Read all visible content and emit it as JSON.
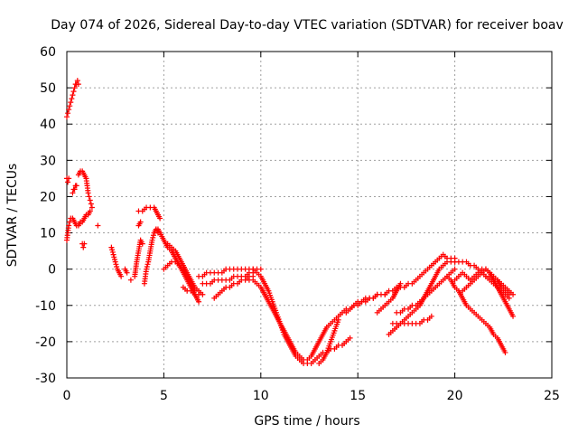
{
  "chart_data": {
    "type": "scatter",
    "title": "Day 074 of 2026, Sidereal Day-to-day VTEC variation (SDTVAR) for receiver boav",
    "xlabel": "GPS time / hours",
    "ylabel": "SDTVAR / TECUs",
    "xlim": [
      0,
      25
    ],
    "ylim": [
      -30,
      60
    ],
    "xticks": [
      "0",
      "5",
      "10",
      "15",
      "20",
      "25"
    ],
    "yticks": [
      "-30",
      "-20",
      "-10",
      "0",
      "10",
      "20",
      "30",
      "40",
      "50",
      "60"
    ],
    "grid": true,
    "marker": "+",
    "color": "#ff0000",
    "series": [
      {
        "name": "trace-1",
        "x": [
          0.0,
          0.05,
          0.1,
          0.15,
          0.2,
          0.25,
          0.3,
          0.35,
          0.4,
          0.45,
          0.5,
          0.55,
          0.6
        ],
        "y": [
          42,
          43,
          44,
          45,
          46,
          47,
          48,
          49,
          50,
          51,
          51,
          52,
          51
        ]
      },
      {
        "name": "trace-2",
        "x": [
          0.0,
          0.05,
          0.1,
          0.15,
          0.2,
          0.3,
          0.4,
          0.5,
          0.6,
          0.7,
          0.8,
          0.9,
          1.0,
          1.1,
          1.2
        ],
        "y": [
          8,
          10,
          12,
          13,
          14,
          14,
          13,
          12,
          12,
          13,
          13,
          14,
          15,
          15,
          16
        ]
      },
      {
        "name": "trace-3",
        "x": [
          0.0,
          0.05,
          0.1
        ],
        "y": [
          25,
          24,
          25
        ]
      },
      {
        "name": "trace-4",
        "x": [
          0.3,
          0.35,
          0.4,
          0.45,
          0.5
        ],
        "y": [
          21,
          22,
          22,
          23,
          23
        ]
      },
      {
        "name": "trace-5",
        "x": [
          0.6,
          0.7,
          0.8,
          0.9,
          1.0,
          1.05,
          1.1,
          1.15,
          1.2,
          1.25,
          1.3
        ],
        "y": [
          26,
          27,
          27,
          26,
          25,
          23,
          21,
          20,
          19,
          18,
          17
        ]
      },
      {
        "name": "trace-6",
        "x": [
          0.8,
          0.85,
          0.9
        ],
        "y": [
          7,
          6,
          7
        ]
      },
      {
        "name": "trace-7",
        "x": [
          1.6
        ],
        "y": [
          12
        ]
      },
      {
        "name": "trace-8",
        "x": [
          2.3,
          2.4,
          2.5,
          2.6,
          2.7,
          2.8
        ],
        "y": [
          6,
          4,
          2,
          0,
          -1,
          -2
        ]
      },
      {
        "name": "trace-9",
        "x": [
          3.0,
          3.1
        ],
        "y": [
          0,
          -1
        ]
      },
      {
        "name": "trace-10",
        "x": [
          3.3
        ],
        "y": [
          -3
        ]
      },
      {
        "name": "trace-11",
        "x": [
          3.5,
          3.6,
          3.7,
          3.8,
          3.9
        ],
        "y": [
          -2,
          2,
          5,
          8,
          7
        ]
      },
      {
        "name": "trace-12",
        "x": [
          3.7,
          3.8
        ],
        "y": [
          12,
          13
        ]
      },
      {
        "name": "trace-13",
        "x": [
          3.7,
          3.9,
          4.1,
          4.3,
          4.5,
          4.6,
          4.7,
          4.8
        ],
        "y": [
          16,
          16,
          17,
          17,
          17,
          16,
          15,
          14
        ]
      },
      {
        "name": "trace-14",
        "x": [
          4.0,
          4.05,
          4.1,
          4.2,
          4.3,
          4.4,
          4.5,
          4.6,
          4.7
        ],
        "y": [
          -4,
          -2,
          0,
          2,
          5,
          8,
          10,
          11,
          10
        ]
      },
      {
        "name": "trace-15",
        "x": [
          4.5,
          4.6,
          4.7,
          4.8,
          5.0,
          5.2,
          5.4,
          5.6,
          5.8,
          6.0,
          6.2,
          6.4,
          6.6,
          6.8
        ],
        "y": [
          10,
          11,
          11,
          10,
          8,
          6,
          5,
          3,
          1,
          -1,
          -3,
          -5,
          -7,
          -9
        ]
      },
      {
        "name": "trace-16",
        "x": [
          5.2,
          5.4,
          5.6,
          5.8,
          6.0,
          6.2,
          6.4,
          6.6,
          6.8,
          7.0
        ],
        "y": [
          7,
          6,
          5,
          3,
          1,
          -1,
          -3,
          -5,
          -6,
          -7
        ]
      },
      {
        "name": "trace-17",
        "x": [
          5.0,
          5.2,
          5.4,
          5.6,
          5.8,
          6.0,
          6.2,
          6.4,
          6.6
        ],
        "y": [
          0,
          1,
          2,
          2,
          1,
          0,
          -2,
          -4,
          -6
        ]
      },
      {
        "name": "trace-18",
        "x": [
          6.0,
          6.2,
          6.4,
          6.6,
          6.8
        ],
        "y": [
          -5,
          -6,
          -6,
          -7,
          -7
        ]
      },
      {
        "name": "trace-19",
        "x": [
          6.8,
          7.0,
          7.2,
          7.4,
          7.6,
          7.8,
          8.0,
          8.2,
          8.4,
          8.6,
          8.8,
          9.0,
          9.2,
          9.4,
          9.6,
          9.8,
          10.0
        ],
        "y": [
          -2,
          -2,
          -1,
          -1,
          -1,
          -1,
          -1,
          0,
          0,
          0,
          0,
          0,
          0,
          0,
          0,
          0,
          0
        ]
      },
      {
        "name": "trace-20",
        "x": [
          7.0,
          7.2,
          7.4,
          7.6,
          7.8,
          8.0,
          8.2,
          8.4,
          8.6,
          8.8,
          9.0,
          9.2,
          9.4,
          9.6
        ],
        "y": [
          -4,
          -4,
          -4,
          -3,
          -3,
          -3,
          -3,
          -3,
          -2,
          -2,
          -2,
          -2,
          -1,
          -1
        ]
      },
      {
        "name": "trace-21",
        "x": [
          7.6,
          7.8,
          8.0,
          8.2,
          8.4,
          8.6,
          8.8,
          9.0,
          9.2,
          9.4,
          9.6
        ],
        "y": [
          -8,
          -7,
          -6,
          -5,
          -5,
          -4,
          -4,
          -3,
          -3,
          -2,
          -2
        ]
      },
      {
        "name": "trace-22",
        "x": [
          9.6,
          9.8,
          10.0,
          10.2,
          10.4,
          10.6,
          10.8,
          11.0,
          11.2,
          11.4,
          11.6,
          11.8,
          12.0,
          12.2,
          12.4,
          12.6,
          12.8,
          13.0,
          13.2,
          13.4,
          13.6,
          13.8,
          14.0,
          14.2,
          14.4,
          14.6
        ],
        "y": [
          0,
          -1,
          -2,
          -4,
          -6,
          -9,
          -12,
          -15,
          -18,
          -20,
          -22,
          -24,
          -25,
          -26,
          -26,
          -26,
          -25,
          -24,
          -23,
          -23,
          -22,
          -22,
          -21,
          -21,
          -20,
          -19
        ]
      },
      {
        "name": "trace-23",
        "x": [
          9.4,
          9.6,
          9.8,
          10.0,
          10.2,
          10.4,
          10.6,
          10.8,
          11.0,
          11.2,
          11.4,
          11.6,
          11.8,
          12.0,
          12.2
        ],
        "y": [
          -3,
          -3,
          -4,
          -5,
          -7,
          -9,
          -11,
          -13,
          -15,
          -17,
          -19,
          -21,
          -23,
          -24,
          -25
        ]
      },
      {
        "name": "trace-24",
        "x": [
          12.4,
          12.6,
          12.8,
          13.0,
          13.2,
          13.4,
          13.6,
          13.8,
          14.0,
          14.2,
          14.4,
          14.6,
          14.8,
          15.0,
          15.2,
          15.4,
          15.6,
          15.8,
          16.0
        ],
        "y": [
          -25,
          -24,
          -22,
          -20,
          -18,
          -16,
          -15,
          -14,
          -13,
          -12,
          -11,
          -11,
          -10,
          -10,
          -9,
          -9,
          -8,
          -8,
          -7
        ]
      },
      {
        "name": "trace-25",
        "x": [
          13.0,
          13.2,
          13.4,
          13.6,
          13.8,
          14.0
        ],
        "y": [
          -26,
          -25,
          -23,
          -20,
          -17,
          -14
        ]
      },
      {
        "name": "trace-26",
        "x": [
          14.4,
          14.6,
          14.8,
          15.0,
          15.2,
          15.4,
          15.6,
          15.8,
          16.0,
          16.2,
          16.4
        ],
        "y": [
          -12,
          -11,
          -10,
          -9,
          -9,
          -8,
          -8,
          -8,
          -7,
          -7,
          -7
        ]
      },
      {
        "name": "trace-27",
        "x": [
          16.4,
          16.6,
          16.8,
          17.0,
          17.2,
          17.4,
          17.6,
          17.8,
          18.0,
          18.2,
          18.4,
          18.6,
          18.8,
          19.0,
          19.2,
          19.4,
          19.6,
          19.8,
          20.0
        ],
        "y": [
          -7,
          -6,
          -6,
          -5,
          -5,
          -5,
          -4,
          -4,
          -3,
          -2,
          -1,
          0,
          1,
          2,
          3,
          4,
          3,
          3,
          3
        ]
      },
      {
        "name": "trace-28",
        "x": [
          16.6,
          16.8,
          17.0,
          17.2,
          17.4,
          17.6,
          17.8,
          18.0,
          18.2,
          18.4,
          18.6,
          18.8,
          19.0,
          19.2,
          19.4,
          19.6,
          19.8,
          20.0
        ],
        "y": [
          -18,
          -17,
          -16,
          -15,
          -14,
          -13,
          -12,
          -11,
          -10,
          -8,
          -6,
          -4,
          -2,
          0,
          1,
          2,
          2,
          2
        ]
      },
      {
        "name": "trace-29",
        "x": [
          16.8,
          17.0,
          17.2,
          17.4,
          17.6,
          17.8,
          18.0,
          18.2,
          18.4,
          18.6,
          18.8
        ],
        "y": [
          -15,
          -15,
          -15,
          -15,
          -15,
          -15,
          -15,
          -15,
          -14,
          -14,
          -13
        ]
      },
      {
        "name": "trace-30",
        "x": [
          16.0,
          16.2,
          16.4,
          16.6,
          16.8,
          17.0,
          17.2
        ],
        "y": [
          -12,
          -11,
          -10,
          -9,
          -8,
          -6,
          -4
        ]
      },
      {
        "name": "trace-31",
        "x": [
          17.0,
          17.2,
          17.4,
          17.6,
          17.8,
          18.0,
          18.2,
          18.4,
          18.6,
          18.8,
          19.0,
          19.2,
          19.4,
          19.6,
          19.8,
          20.0
        ],
        "y": [
          -12,
          -12,
          -11,
          -11,
          -10,
          -10,
          -9,
          -8,
          -7,
          -6,
          -5,
          -4,
          -3,
          -2,
          -1,
          0
        ]
      },
      {
        "name": "trace-32",
        "x": [
          20.0,
          20.2,
          20.4,
          20.6,
          20.8,
          21.0,
          21.2,
          21.4,
          21.6,
          21.8,
          22.0,
          22.2,
          22.4,
          22.6,
          22.8
        ],
        "y": [
          2,
          2,
          2,
          2,
          1,
          1,
          0,
          -1,
          -2,
          -3,
          -4,
          -5,
          -6,
          -7,
          -8
        ]
      },
      {
        "name": "trace-33",
        "x": [
          19.6,
          19.8,
          20.0,
          20.2,
          20.4,
          20.6,
          20.8,
          21.0,
          21.2,
          21.4,
          21.6,
          21.8,
          22.0,
          22.2,
          22.4,
          22.6
        ],
        "y": [
          -2,
          -3,
          -5,
          -6,
          -8,
          -10,
          -11,
          -12,
          -13,
          -14,
          -15,
          -16,
          -18,
          -19,
          -21,
          -23
        ]
      },
      {
        "name": "trace-34",
        "x": [
          20.0,
          20.2,
          20.4,
          20.6,
          20.8,
          21.0,
          21.2,
          21.4,
          21.6,
          21.8,
          22.0,
          22.2,
          22.4,
          22.6,
          22.8,
          23.0
        ],
        "y": [
          -3,
          -2,
          -1,
          -2,
          -3,
          -2,
          -1,
          0,
          0,
          -1,
          -3,
          -5,
          -7,
          -9,
          -11,
          -13
        ]
      },
      {
        "name": "trace-35",
        "x": [
          20.4,
          20.6,
          20.8,
          21.0,
          21.2,
          21.4,
          21.6,
          21.8,
          22.0,
          22.2,
          22.4,
          22.6,
          22.8
        ],
        "y": [
          -6,
          -5,
          -4,
          -3,
          -2,
          -1,
          0,
          -1,
          -2,
          -3,
          -5,
          -6,
          -7
        ]
      },
      {
        "name": "trace-36",
        "x": [
          21.6,
          21.8,
          22.0,
          22.2,
          22.4,
          22.6,
          22.8,
          23.0
        ],
        "y": [
          -2,
          -2,
          -3,
          -3,
          -4,
          -5,
          -6,
          -7
        ]
      }
    ]
  }
}
